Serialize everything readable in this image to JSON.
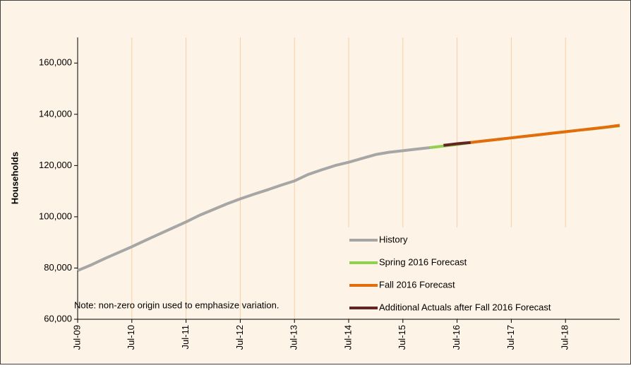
{
  "chart_data": {
    "type": "line",
    "y_label": "Households",
    "annotation": "Note: non-zero origin used to emphasize variation.",
    "categories": [
      "Jul-09",
      null,
      null,
      null,
      "Jul-10",
      null,
      null,
      null,
      "Jul-11",
      null,
      null,
      null,
      "Jul-12",
      null,
      null,
      null,
      "Jul-13",
      null,
      null,
      null,
      "Jul-14",
      null,
      null,
      null,
      "Jul-15",
      null,
      null,
      null,
      "Jul-16",
      null,
      null,
      null,
      "Jul-17",
      null,
      null,
      null,
      "Jul-18",
      null,
      null,
      null,
      null
    ],
    "series": [
      {
        "name": "History",
        "color": "#a6a6a6",
        "values": [
          79000,
          81200,
          83700,
          86000,
          88300,
          90800,
          93200,
          95600,
          98000,
          100600,
          102800,
          105000,
          107000,
          108800,
          110500,
          112300,
          114000,
          116500,
          118300,
          120000,
          121300,
          122800,
          124300,
          125200,
          125800,
          126400,
          127000,
          null,
          null,
          null,
          null,
          null,
          null,
          null,
          null,
          null,
          null,
          null,
          null,
          null,
          null
        ]
      },
      {
        "name": "Spring 2016 Forecast",
        "color": "#92d050",
        "values": [
          null,
          null,
          null,
          null,
          null,
          null,
          null,
          null,
          null,
          null,
          null,
          null,
          null,
          null,
          null,
          null,
          null,
          null,
          null,
          null,
          null,
          null,
          null,
          null,
          null,
          null,
          127000,
          127600,
          128200,
          129000,
          129600,
          130200,
          130800,
          131400,
          132000,
          132600,
          133200,
          133800,
          134300,
          134900,
          135500
        ]
      },
      {
        "name": "Fall 2016 Forecast",
        "color": "#e46c0a",
        "values": [
          null,
          null,
          null,
          null,
          null,
          null,
          null,
          null,
          null,
          null,
          null,
          null,
          null,
          null,
          null,
          null,
          null,
          null,
          null,
          null,
          null,
          null,
          null,
          null,
          null,
          null,
          null,
          null,
          null,
          129000,
          129600,
          130200,
          130800,
          131400,
          132000,
          132600,
          133200,
          133800,
          134400,
          135000,
          135700
        ]
      },
      {
        "name": "Additional Actuals after Fall 2016 Forecast",
        "color": "#632523",
        "values": [
          null,
          null,
          null,
          null,
          null,
          null,
          null,
          null,
          null,
          null,
          null,
          null,
          null,
          null,
          null,
          null,
          null,
          null,
          null,
          null,
          null,
          null,
          null,
          null,
          null,
          null,
          null,
          127900,
          128500,
          129000,
          null,
          null,
          null,
          null,
          null,
          null,
          null,
          null,
          null,
          null,
          null
        ]
      }
    ],
    "ylim": [
      60000,
      170000
    ],
    "yticks": [
      {
        "value": 60000,
        "label": "60,000"
      },
      {
        "value": 80000,
        "label": "80,000"
      },
      {
        "value": 100000,
        "label": "100,000"
      },
      {
        "value": 120000,
        "label": "120,000"
      },
      {
        "value": 140000,
        "label": "140,000"
      },
      {
        "value": 160000,
        "label": "160,000"
      }
    ],
    "grid": "x",
    "legend": "lower right"
  }
}
